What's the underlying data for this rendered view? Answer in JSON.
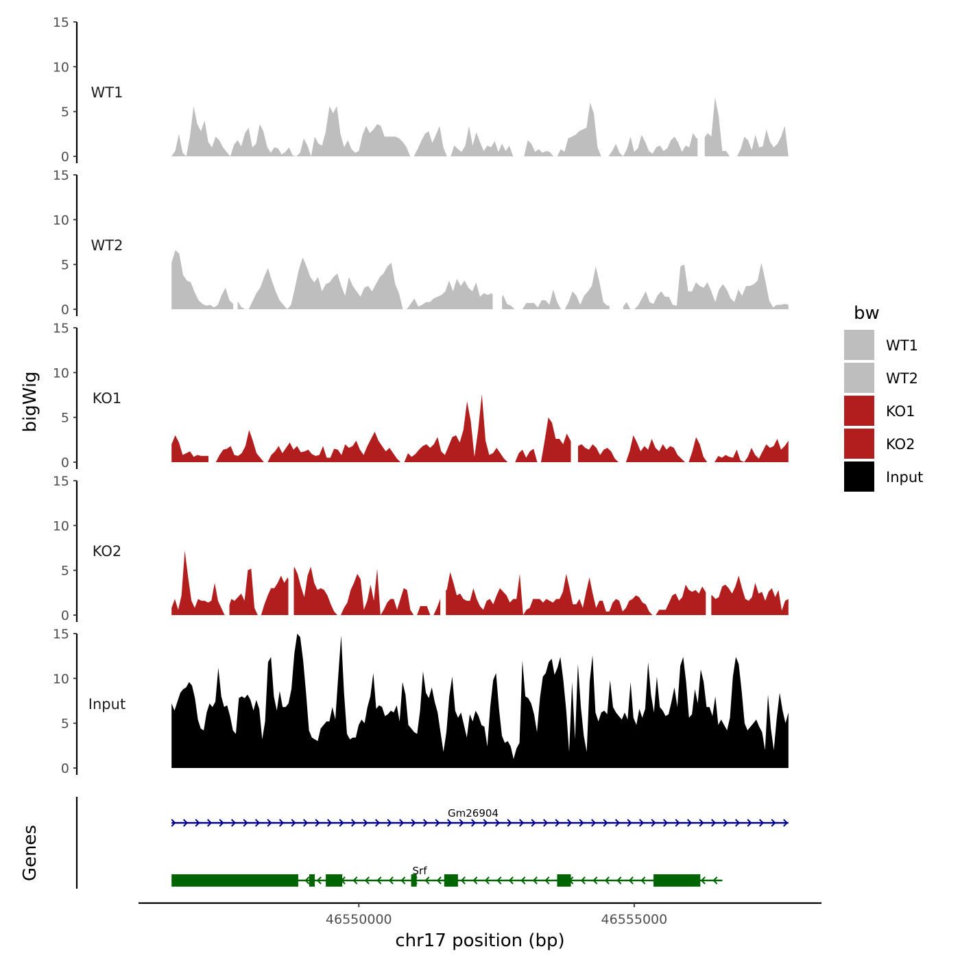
{
  "chart_data": {
    "type": "area",
    "ylabel": "bigWig",
    "xlabel": "chr17 position (bp)",
    "ylim": [
      0,
      15
    ],
    "yticks": [
      0,
      5,
      10,
      15
    ],
    "xlim": [
      46546000,
      46558400
    ],
    "xticks": [
      46550000,
      46555000
    ],
    "xtick_labels": [
      "46550000",
      "46555000"
    ],
    "genes_label": "Genes",
    "legend": {
      "title": "bw",
      "entries": [
        {
          "label": "WT1",
          "color": "#bebebe"
        },
        {
          "label": "WT2",
          "color": "#bebebe"
        },
        {
          "label": "KO1",
          "color": "#b21e1e"
        },
        {
          "label": "KO2",
          "color": "#b21e1e"
        },
        {
          "label": "Input",
          "color": "#000000"
        }
      ]
    },
    "x_start": 46546600,
    "x_end": 46557800,
    "tracks": [
      {
        "name": "WT1",
        "color": "#bebebe",
        "values": [
          0,
          0.6,
          2.5,
          0.4,
          0,
          2.2,
          5.6,
          3.6,
          2.8,
          4.0,
          1.6,
          1.0,
          2.2,
          1.8,
          1.0,
          0.5,
          0,
          1.3,
          1.8,
          1.1,
          2.6,
          3.2,
          1.0,
          1.4,
          3.6,
          2.8,
          1.1,
          0.4,
          1.0,
          0.9,
          0.2,
          0.5,
          1.0,
          0.1,
          0,
          0.4,
          2.0,
          1.2,
          0,
          2.2,
          1.4,
          1.2,
          2.8,
          5.6,
          4.8,
          5.6,
          2.5,
          1.0,
          1.8,
          0.8,
          0.4,
          0.6,
          2.4,
          3.4,
          2.6,
          3.0,
          3.6,
          3.4,
          2.2,
          2.2,
          2.2,
          2.2,
          2.0,
          1.6,
          1.0,
          0,
          0,
          0.8,
          1.7,
          2.5,
          2.8,
          1.5,
          2.4,
          3.4,
          1.0,
          0,
          0,
          1.2,
          0.8,
          0.5,
          1.2,
          3.4,
          1.2,
          2.7,
          1.6,
          0.6,
          1.2,
          1.0,
          1.7,
          0.5,
          1.4,
          0.6,
          1.2,
          0,
          0,
          0,
          0,
          1.8,
          1.4,
          0.5,
          0.8,
          0.4,
          0.6,
          0.5,
          0,
          0,
          0.8,
          0.5,
          2.0,
          2.2,
          2.4,
          2.8,
          3.0,
          3.2,
          6.0,
          4.8,
          1.0,
          0,
          0,
          0,
          0.6,
          1.4,
          0.4,
          0,
          0.8,
          2.2,
          0.5,
          0.9,
          2.4,
          1.6,
          0.6,
          0.3,
          1.0,
          1.2,
          0.6,
          0.9,
          1.8,
          2.2,
          1.5,
          0.5,
          1.2,
          1.0,
          2.6,
          2.0,
          2.0,
          2.0,
          2.6,
          2.2,
          6.6,
          4.5,
          0.6,
          0.6,
          0,
          0,
          0,
          0.8,
          2.2,
          1.8,
          0.7,
          2.4,
          1.0,
          1.1,
          3.0,
          1.6,
          1.0,
          1.4,
          2.2,
          3.4,
          0
        ],
        "gaps": [
          [
            46556150,
            46556280
          ]
        ]
      },
      {
        "name": "WT2",
        "color": "#bebebe",
        "values": [
          5.2,
          6.6,
          6.2,
          3.8,
          3.2,
          3.0,
          1.9,
          1.0,
          0.6,
          0.4,
          0.5,
          0.2,
          0.5,
          1.6,
          2.4,
          1.0,
          0.6,
          1.0,
          0.3,
          0,
          0,
          0.9,
          1.8,
          2.4,
          3.6,
          4.6,
          3.2,
          2.0,
          1.0,
          0.5,
          0,
          0.5,
          2.4,
          4.4,
          5.8,
          4.8,
          3.6,
          3.0,
          3.6,
          2.0,
          2.8,
          3.0,
          3.6,
          4.0,
          2.6,
          1.5,
          3.6,
          2.6,
          2.0,
          1.4,
          2.4,
          2.6,
          2.0,
          2.8,
          3.6,
          4.0,
          4.8,
          5.2,
          2.8,
          1.8,
          0,
          0,
          0.6,
          1.2,
          0.3,
          0.5,
          0.8,
          0.8,
          1.2,
          1.4,
          1.6,
          2.0,
          3.2,
          2.0,
          3.4,
          2.6,
          3.2,
          2.4,
          2.0,
          3.0,
          1.4,
          1.8,
          1.6,
          1.8,
          1.2,
          0.8,
          1.6,
          0.6,
          0.4,
          0,
          0,
          0,
          0.7,
          0.7,
          0.7,
          0.2,
          1.0,
          1.0,
          0.5,
          2.2,
          0.8,
          0,
          0,
          0.8,
          2.0,
          1.5,
          0.5,
          1.5,
          2.0,
          2.6,
          4.8,
          3.0,
          0.8,
          0.4,
          0.4,
          0.8,
          0.5,
          0.2,
          0.8,
          0,
          0,
          0.4,
          1.2,
          2.0,
          0.8,
          0.6,
          1.5,
          2.0,
          1.4,
          1.4,
          0.5,
          0.4,
          4.8,
          5.0,
          2.0,
          2.0,
          3.0,
          2.6,
          2.4,
          3.0,
          2.0,
          0.8,
          2.2,
          2.8,
          2.2,
          1.2,
          0.8,
          2.2,
          1.5,
          2.6,
          2.6,
          2.8,
          3.2,
          5.2,
          3.2,
          1.0,
          0.2,
          0.5,
          0.5,
          0.6,
          0.5
        ],
        "gaps": [
          [
            46547720,
            46547800
          ],
          [
            46552430,
            46552600
          ],
          [
            46554550,
            46554800
          ]
        ]
      },
      {
        "name": "KO1",
        "color": "#b21e1e",
        "values": [
          2.0,
          3.0,
          2.2,
          0.8,
          1.0,
          1.2,
          0.6,
          0.8,
          0.7,
          0.7,
          0.7,
          0,
          0,
          0.8,
          1.4,
          1.5,
          1.8,
          0.8,
          0.7,
          1.0,
          1.8,
          3.6,
          2.4,
          1.0,
          0.5,
          0,
          0,
          0.8,
          1.2,
          1.8,
          1.0,
          1.6,
          2.2,
          1.4,
          1.8,
          1.1,
          1.2,
          1.4,
          0.9,
          0.7,
          0.8,
          1.8,
          0.5,
          0.5,
          1.5,
          1.4,
          0.8,
          2.0,
          1.6,
          1.8,
          2.4,
          1.4,
          0.8,
          1.8,
          2.6,
          3.4,
          2.4,
          1.8,
          1.2,
          1.6,
          1.0,
          0.4,
          0,
          0,
          1.0,
          0.6,
          0.9,
          1.4,
          1.8,
          2.0,
          1.6,
          2.0,
          2.8,
          1.2,
          0.8,
          1.8,
          2.8,
          3.0,
          2.2,
          3.6,
          6.8,
          4.6,
          0.6,
          3.6,
          7.6,
          2.4,
          0.8,
          1.0,
          1.6,
          1.0,
          0.4,
          0,
          0,
          0,
          1.0,
          1.4,
          0.5,
          1.2,
          1.5,
          0,
          0,
          2.4,
          5.0,
          4.4,
          2.6,
          2.6,
          2.0,
          3.2,
          2.4,
          1.8,
          1.8,
          2.0,
          1.6,
          1.4,
          2.0,
          1.6,
          0.8,
          1.4,
          1.6,
          1.2,
          0.4,
          0,
          0,
          0,
          1.2,
          3.0,
          2.2,
          1.2,
          1.8,
          1.4,
          2.6,
          1.6,
          1.2,
          2.0,
          1.4,
          1.8,
          1.6,
          0.8,
          0.4,
          0,
          0,
          1.2,
          2.8,
          2.0,
          0.6,
          0,
          0,
          0,
          0.7,
          0.5,
          0.8,
          0.6,
          0.5,
          1.4,
          0.2,
          0,
          0.6,
          1.6,
          0.8,
          0.4,
          1.2,
          2.0,
          1.6,
          1.8,
          2.6,
          1.4,
          1.8,
          2.4
        ],
        "gaps": [
          [
            46547270,
            46547380
          ],
          [
            46553850,
            46553980
          ]
        ]
      },
      {
        "name": "KO2",
        "color": "#b21e1e",
        "values": [
          0.8,
          1.8,
          0.6,
          2.2,
          7.2,
          4.2,
          1.6,
          0.8,
          1.8,
          1.6,
          1.6,
          1.4,
          1.6,
          3.6,
          1.6,
          0.8,
          0,
          0.6,
          1.8,
          1.6,
          2.0,
          2.4,
          1.6,
          5.0,
          5.2,
          0.8,
          0,
          0,
          1.2,
          2.2,
          3.0,
          3.0,
          3.6,
          4.4,
          3.6,
          4.2,
          3.4,
          5.4,
          4.6,
          3.2,
          2.0,
          4.4,
          5.4,
          3.6,
          2.8,
          3.0,
          2.8,
          2.2,
          1.2,
          0.4,
          0,
          0,
          0.8,
          1.4,
          2.8,
          3.6,
          4.6,
          4.0,
          0.6,
          1.6,
          3.4,
          1.6,
          5.2,
          0,
          0.6,
          1.4,
          1.8,
          1.8,
          0.6,
          1.8,
          3.0,
          2.8,
          0.6,
          0,
          0,
          1.0,
          1.0,
          1.0,
          0,
          0,
          0.8,
          1.8,
          2.8,
          2.8,
          4.8,
          3.6,
          2.2,
          2.4,
          1.8,
          1.6,
          1.6,
          3.0,
          1.8,
          1.0,
          0.6,
          1.6,
          1.8,
          1.2,
          2.2,
          3.0,
          2.6,
          2.2,
          1.4,
          1.8,
          1.8,
          4.6,
          0,
          0.6,
          0.8,
          1.8,
          1.8,
          1.8,
          1.4,
          1.8,
          1.6,
          1.4,
          1.8,
          1.8,
          2.6,
          4.6,
          3.0,
          1.2,
          1.2,
          1.8,
          0.8,
          2.6,
          4.2,
          2.4,
          0.8,
          1.6,
          1.6,
          0.4,
          0.4,
          1.4,
          1.8,
          1.6,
          0.4,
          0.8,
          1.6,
          1.8,
          2.2,
          2.0,
          1.4,
          1.2,
          0.4,
          0,
          0,
          0.6,
          0.6,
          0.6,
          1.4,
          2.2,
          2.4,
          1.6,
          2.0,
          3.4,
          2.8,
          2.6,
          2.8,
          2.4,
          3.2,
          2.6,
          2.2,
          2.2,
          1.8,
          2.0,
          3.2,
          3.4,
          3.0,
          2.4,
          3.2,
          4.4,
          3.0,
          1.8,
          1.6,
          2.0,
          3.6,
          2.4,
          2.6,
          1.6,
          2.6,
          3.0,
          2.0,
          2.8,
          0.5,
          1.6,
          1.8
        ],
        "gaps": [
          [
            46547570,
            46547650
          ],
          [
            46548720,
            46548820
          ],
          [
            46551480,
            46551580
          ],
          [
            46556300,
            46556400
          ]
        ]
      },
      {
        "name": "Input",
        "color": "#000000",
        "values": [
          7.2,
          6.4,
          7.4,
          8.4,
          8.8,
          9.0,
          9.6,
          9.2,
          7.8,
          5.4,
          4.4,
          4.2,
          6.2,
          7.2,
          6.8,
          7.4,
          11.2,
          8.0,
          6.8,
          7.0,
          5.8,
          4.2,
          3.8,
          7.8,
          8.0,
          7.8,
          8.2,
          7.6,
          6.4,
          7.6,
          6.6,
          3.2,
          5.2,
          11.8,
          12.4,
          8.0,
          6.4,
          8.6,
          6.8,
          6.8,
          7.2,
          8.8,
          12.8,
          15.0,
          14.6,
          12.0,
          8.4,
          4.2,
          3.4,
          3.2,
          3.0,
          4.4,
          4.8,
          5.2,
          5.2,
          6.8,
          5.4,
          10.2,
          14.8,
          8.4,
          3.8,
          3.2,
          3.4,
          3.4,
          4.8,
          5.4,
          5.0,
          6.8,
          8.0,
          10.6,
          6.6,
          7.0,
          6.8,
          5.8,
          6.0,
          6.4,
          6.2,
          7.0,
          5.2,
          9.6,
          8.2,
          4.8,
          4.4,
          4.0,
          3.8,
          6.4,
          10.8,
          8.4,
          7.8,
          9.0,
          7.4,
          6.2,
          4.0,
          1.8,
          4.0,
          8.0,
          10.2,
          6.4,
          5.6,
          6.2,
          4.8,
          3.4,
          6.0,
          5.2,
          6.4,
          5.8,
          4.8,
          4.6,
          2.4,
          6.8,
          9.8,
          10.6,
          6.6,
          3.6,
          2.8,
          3.0,
          2.4,
          1.0,
          2.2,
          2.8,
          12.0,
          8.0,
          7.8,
          7.2,
          6.0,
          4.0,
          7.8,
          10.2,
          10.6,
          11.8,
          12.2,
          10.4,
          11.2,
          12.4,
          9.8,
          6.4,
          1.8,
          9.6,
          3.2,
          11.6,
          6.8,
          3.6,
          1.8,
          9.6,
          12.6,
          6.2,
          5.2,
          6.2,
          6.4,
          6.0,
          9.8,
          6.8,
          6.2,
          5.8,
          5.4,
          6.2,
          5.4,
          9.6,
          5.6,
          4.8,
          6.6,
          5.6,
          6.6,
          11.8,
          8.2,
          6.2,
          10.2,
          6.8,
          6.4,
          5.8,
          6.0,
          7.4,
          9.0,
          6.8,
          11.4,
          12.4,
          9.6,
          5.6,
          6.0,
          8.8,
          7.2,
          11.0,
          9.6,
          6.8,
          6.8,
          5.8,
          8.0,
          4.8,
          5.4,
          4.8,
          4.2,
          5.6,
          10.2,
          12.4,
          11.6,
          8.6,
          5.0,
          4.2,
          4.6,
          5.0,
          5.4,
          4.6,
          4.0,
          2.0,
          8.2,
          4.4,
          2.0,
          5.6,
          8.4,
          6.4,
          5.0,
          6.2
        ],
        "gaps": []
      }
    ],
    "genes": [
      {
        "name": "Gm26904",
        "strand": "+",
        "color": "#00008b",
        "start": 46546600,
        "end": 46557800,
        "exons": []
      },
      {
        "name": "Srf",
        "strand": "-",
        "color": "#006400",
        "start": 46546600,
        "end": 46556600,
        "exons": [
          [
            46546600,
            46548900
          ],
          [
            46549100,
            46549200
          ],
          [
            46549400,
            46549700
          ],
          [
            46550950,
            46551050
          ],
          [
            46551550,
            46551800
          ],
          [
            46553600,
            46553850
          ],
          [
            46555350,
            46556200
          ]
        ]
      }
    ]
  }
}
